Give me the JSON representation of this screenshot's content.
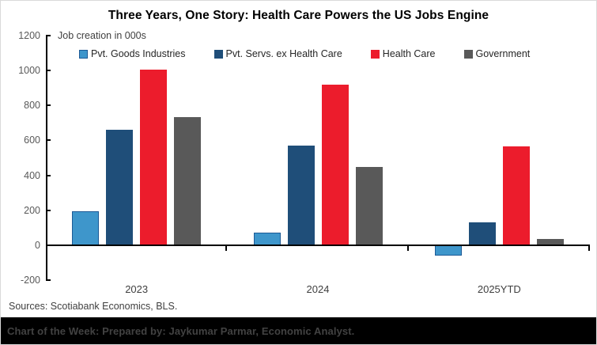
{
  "chart_data": {
    "type": "bar",
    "title": "Three Years, One Story: Health Care Powers the US Jobs Engine",
    "axis_note": "Job creation in 000s",
    "categories": [
      "2023",
      "2024",
      "2025YTD"
    ],
    "series": [
      {
        "name": "Pvt. Goods Industries",
        "color": "#3E96CB",
        "border_color": "#1C5A96",
        "values": [
          195,
          70,
          -60
        ]
      },
      {
        "name": "Pvt. Servs. ex Health Care",
        "color": "#1F4E79",
        "values": [
          660,
          570,
          130
        ]
      },
      {
        "name": "Health Care",
        "color": "#EC1C2C",
        "values": [
          1005,
          920,
          565
        ]
      },
      {
        "name": "Government",
        "color": "#595959",
        "values": [
          735,
          450,
          35
        ]
      }
    ],
    "ylim": [
      -200,
      1200
    ],
    "yticks": [
      -200,
      0,
      200,
      400,
      600,
      800,
      1000,
      1200
    ],
    "grid": false,
    "legend_position": "top"
  },
  "sources_note": "Sources: Scotiabank Economics, BLS.",
  "footer_text": "Chart of the Week: Prepared by: Jaykumar Parmar, Economic Analyst.",
  "colors": {
    "footer_background": "#000000",
    "footer_text": "#424242",
    "axis": "#000000",
    "tick_label": "#595959"
  }
}
